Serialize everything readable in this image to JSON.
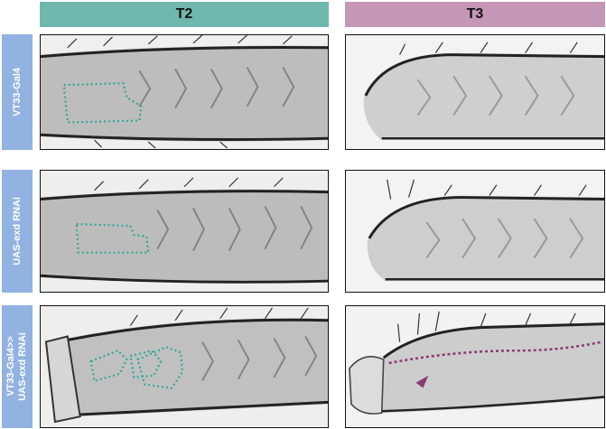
{
  "colors": {
    "t2_header": "#70b7ad",
    "t3_header": "#c497b6",
    "row_label": "#92b2e1",
    "outline_t2": "#2ea896",
    "outline_t3": "#8a3b74",
    "arrowhead": "#8a3b74"
  },
  "columns": [
    {
      "label": "T2"
    },
    {
      "label": "T3"
    }
  ],
  "rows": [
    {
      "label_lines": [
        "VT33-Gal4"
      ]
    },
    {
      "label_lines": [
        "UAS-exd RNAi"
      ]
    },
    {
      "label_lines": [
        "VT33-Gal4>>",
        "UAS-exd RNAi"
      ]
    }
  ]
}
